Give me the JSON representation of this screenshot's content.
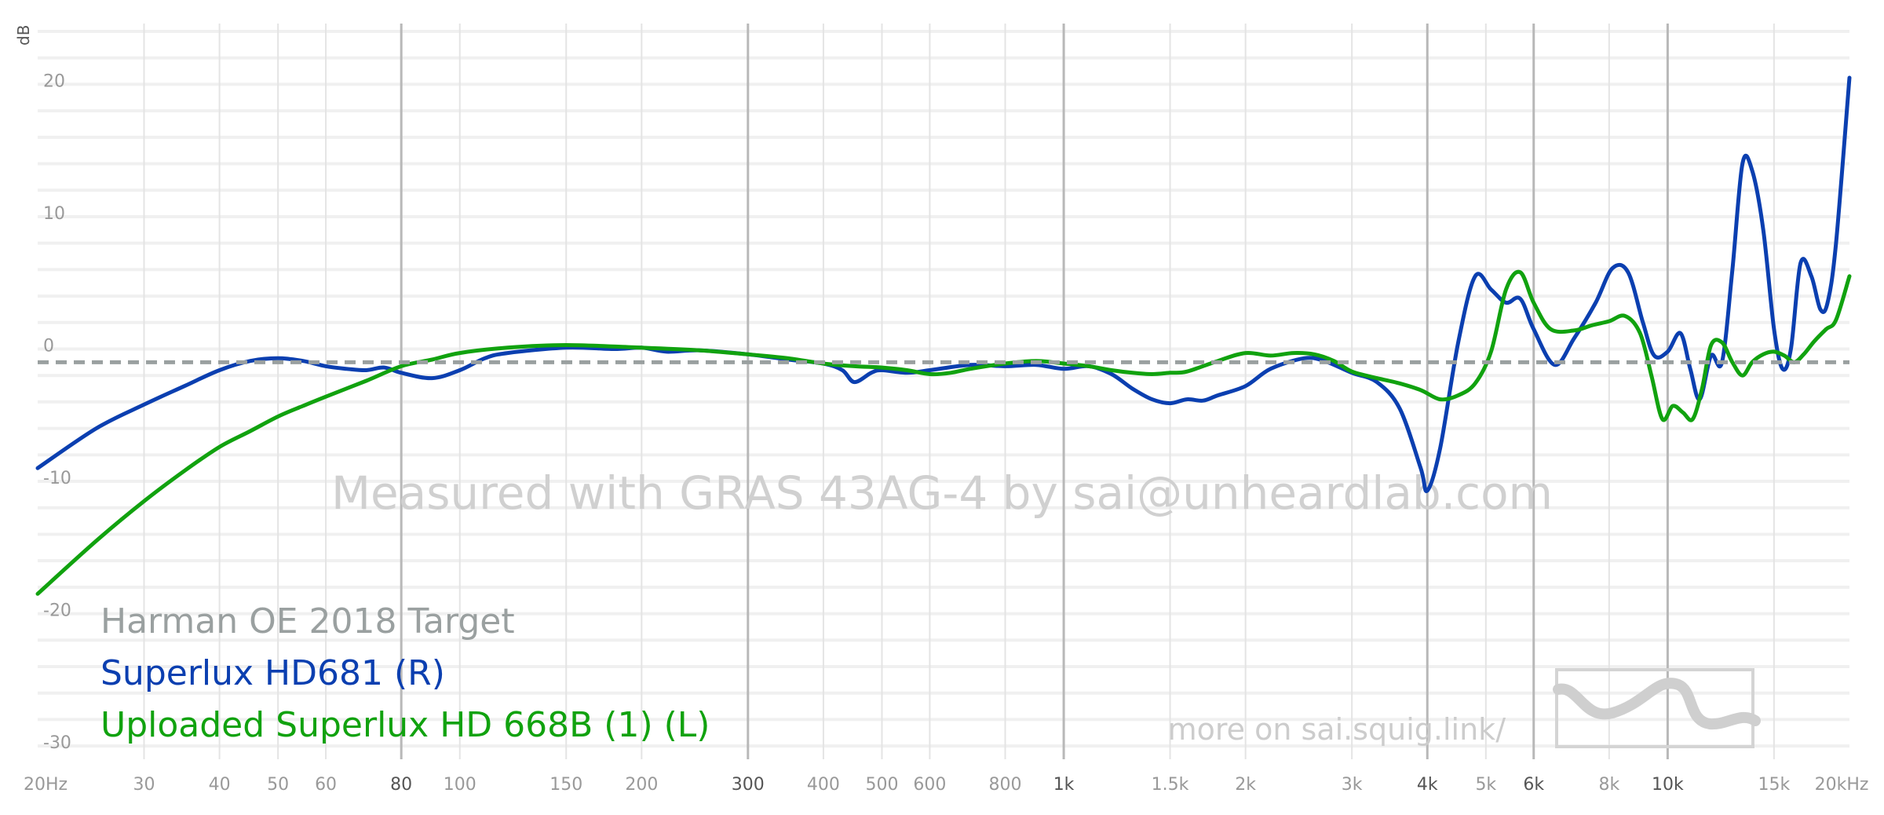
{
  "chart_data": {
    "type": "line",
    "x_scale": "log",
    "xlim": [
      20,
      20000
    ],
    "ylim": [
      -30,
      25
    ],
    "ylabel": "dB",
    "x_ticks": [
      {
        "v": 20,
        "label": "20Hz"
      },
      {
        "v": 30,
        "label": "30"
      },
      {
        "v": 40,
        "label": "40"
      },
      {
        "v": 50,
        "label": "50"
      },
      {
        "v": 60,
        "label": "60"
      },
      {
        "v": 80,
        "label": "80",
        "major": true
      },
      {
        "v": 100,
        "label": "100"
      },
      {
        "v": 150,
        "label": "150"
      },
      {
        "v": 200,
        "label": "200"
      },
      {
        "v": 300,
        "label": "300",
        "major": true
      },
      {
        "v": 400,
        "label": "400"
      },
      {
        "v": 500,
        "label": "500"
      },
      {
        "v": 600,
        "label": "600"
      },
      {
        "v": 800,
        "label": "800"
      },
      {
        "v": 1000,
        "label": "1k",
        "major": true
      },
      {
        "v": 1500,
        "label": "1.5k"
      },
      {
        "v": 2000,
        "label": "2k"
      },
      {
        "v": 3000,
        "label": "3k"
      },
      {
        "v": 4000,
        "label": "4k",
        "major": true
      },
      {
        "v": 5000,
        "label": "5k"
      },
      {
        "v": 6000,
        "label": "6k",
        "major": true
      },
      {
        "v": 8000,
        "label": "8k"
      },
      {
        "v": 10000,
        "label": "10k",
        "major": true
      },
      {
        "v": 15000,
        "label": "15k"
      },
      {
        "v": 20000,
        "label": "20kHz"
      }
    ],
    "y_ticks": [
      {
        "v": 20,
        "label": "20"
      },
      {
        "v": 10,
        "label": "10"
      },
      {
        "v": 0,
        "label": "0"
      },
      {
        "v": -10,
        "label": "-10"
      },
      {
        "v": -20,
        "label": "-20"
      },
      {
        "v": -30,
        "label": "-30"
      }
    ],
    "grid": true,
    "series": [
      {
        "name": "Harman OE 2018 Target",
        "color": "#9aa0a0",
        "dashed": true,
        "points": [
          [
            20,
            0
          ],
          [
            20000,
            0
          ]
        ]
      },
      {
        "name": "Superlux HD681 (R)",
        "color": "#0b3fb0",
        "points": [
          [
            20,
            -8
          ],
          [
            25,
            -5
          ],
          [
            30,
            -3.2
          ],
          [
            35,
            -1.8
          ],
          [
            40,
            -0.6
          ],
          [
            45,
            0.1
          ],
          [
            50,
            0.3
          ],
          [
            55,
            0.1
          ],
          [
            60,
            -0.3
          ],
          [
            65,
            -0.5
          ],
          [
            70,
            -0.6
          ],
          [
            75,
            -0.4
          ],
          [
            80,
            -0.8
          ],
          [
            90,
            -1.2
          ],
          [
            100,
            -0.6
          ],
          [
            110,
            0.3
          ],
          [
            120,
            0.7
          ],
          [
            150,
            1.1
          ],
          [
            180,
            1.0
          ],
          [
            200,
            1.1
          ],
          [
            220,
            0.8
          ],
          [
            250,
            0.9
          ],
          [
            300,
            0.6
          ],
          [
            350,
            0.2
          ],
          [
            400,
            -0.1
          ],
          [
            430,
            -0.6
          ],
          [
            450,
            -1.5
          ],
          [
            480,
            -0.8
          ],
          [
            500,
            -0.6
          ],
          [
            550,
            -0.8
          ],
          [
            600,
            -0.6
          ],
          [
            700,
            -0.2
          ],
          [
            800,
            -0.3
          ],
          [
            900,
            -0.2
          ],
          [
            1000,
            -0.5
          ],
          [
            1100,
            -0.3
          ],
          [
            1200,
            -0.9
          ],
          [
            1300,
            -2.0
          ],
          [
            1400,
            -2.8
          ],
          [
            1500,
            -3.1
          ],
          [
            1600,
            -2.8
          ],
          [
            1700,
            -2.9
          ],
          [
            1800,
            -2.5
          ],
          [
            2000,
            -1.8
          ],
          [
            2200,
            -0.5
          ],
          [
            2500,
            0.3
          ],
          [
            2700,
            0.1
          ],
          [
            3000,
            -0.8
          ],
          [
            3300,
            -1.5
          ],
          [
            3600,
            -3.5
          ],
          [
            3900,
            -8.0
          ],
          [
            4000,
            -9.7
          ],
          [
            4200,
            -6.5
          ],
          [
            4500,
            1.5
          ],
          [
            4800,
            6.5
          ],
          [
            5100,
            5.5
          ],
          [
            5400,
            4.5
          ],
          [
            5700,
            4.8
          ],
          [
            6000,
            2.5
          ],
          [
            6500,
            -0.2
          ],
          [
            7000,
            1.8
          ],
          [
            7600,
            4.5
          ],
          [
            8100,
            7.1
          ],
          [
            8600,
            6.8
          ],
          [
            9100,
            3.0
          ],
          [
            9500,
            0.5
          ],
          [
            10000,
            0.8
          ],
          [
            10500,
            2.2
          ],
          [
            10900,
            -0.5
          ],
          [
            11300,
            -2.8
          ],
          [
            11800,
            0.5
          ],
          [
            12300,
            0.0
          ],
          [
            12800,
            7.0
          ],
          [
            13300,
            15.0
          ],
          [
            13800,
            14.5
          ],
          [
            14400,
            10.0
          ],
          [
            15000,
            2.5
          ],
          [
            15500,
            -0.5
          ],
          [
            16000,
            1.0
          ],
          [
            16600,
            7.5
          ],
          [
            17300,
            6.5
          ],
          [
            17900,
            4.0
          ],
          [
            18400,
            4.5
          ],
          [
            19000,
            9.0
          ],
          [
            20000,
            21.5
          ]
        ]
      },
      {
        "name": "Uploaded Superlux HD 668B (1) (L)",
        "color": "#11a20f",
        "points": [
          [
            20,
            -17.5
          ],
          [
            25,
            -13.5
          ],
          [
            30,
            -10.5
          ],
          [
            35,
            -8.2
          ],
          [
            40,
            -6.4
          ],
          [
            45,
            -5.2
          ],
          [
            50,
            -4.1
          ],
          [
            55,
            -3.3
          ],
          [
            60,
            -2.6
          ],
          [
            70,
            -1.4
          ],
          [
            80,
            -0.3
          ],
          [
            90,
            0.2
          ],
          [
            100,
            0.7
          ],
          [
            120,
            1.1
          ],
          [
            150,
            1.3
          ],
          [
            200,
            1.1
          ],
          [
            250,
            0.9
          ],
          [
            300,
            0.6
          ],
          [
            350,
            0.3
          ],
          [
            400,
            -0.1
          ],
          [
            450,
            -0.3
          ],
          [
            500,
            -0.4
          ],
          [
            550,
            -0.6
          ],
          [
            600,
            -0.9
          ],
          [
            650,
            -0.8
          ],
          [
            700,
            -0.5
          ],
          [
            800,
            -0.1
          ],
          [
            900,
            0.1
          ],
          [
            1000,
            -0.1
          ],
          [
            1100,
            -0.3
          ],
          [
            1200,
            -0.6
          ],
          [
            1300,
            -0.8
          ],
          [
            1400,
            -0.9
          ],
          [
            1500,
            -0.8
          ],
          [
            1600,
            -0.7
          ],
          [
            1800,
            0.1
          ],
          [
            2000,
            0.7
          ],
          [
            2200,
            0.5
          ],
          [
            2400,
            0.7
          ],
          [
            2600,
            0.6
          ],
          [
            2800,
            0.1
          ],
          [
            3000,
            -0.7
          ],
          [
            3300,
            -1.2
          ],
          [
            3600,
            -1.6
          ],
          [
            3900,
            -2.1
          ],
          [
            4200,
            -2.8
          ],
          [
            4500,
            -2.5
          ],
          [
            4800,
            -1.6
          ],
          [
            5100,
            0.8
          ],
          [
            5400,
            5.5
          ],
          [
            5700,
            6.8
          ],
          [
            6000,
            4.5
          ],
          [
            6400,
            2.5
          ],
          [
            7000,
            2.4
          ],
          [
            7500,
            2.8
          ],
          [
            8000,
            3.1
          ],
          [
            8500,
            3.5
          ],
          [
            9000,
            2.2
          ],
          [
            9400,
            -1.0
          ],
          [
            9800,
            -4.3
          ],
          [
            10200,
            -3.3
          ],
          [
            10600,
            -3.8
          ],
          [
            11000,
            -4.3
          ],
          [
            11400,
            -2.0
          ],
          [
            11800,
            1.3
          ],
          [
            12300,
            1.5
          ],
          [
            12800,
            0.0
          ],
          [
            13300,
            -1.0
          ],
          [
            13800,
            0.0
          ],
          [
            14400,
            0.6
          ],
          [
            15000,
            0.8
          ],
          [
            15600,
            0.5
          ],
          [
            16200,
            0.0
          ],
          [
            16800,
            0.6
          ],
          [
            17500,
            1.6
          ],
          [
            18300,
            2.5
          ],
          [
            19000,
            3.2
          ],
          [
            20000,
            6.5
          ]
        ]
      }
    ],
    "legend_position": "bottom-left",
    "watermark": "Measured with GRAS 43AG-4 by sai@unheardlab.com",
    "footer_link": "more on sai.squig.link/"
  }
}
